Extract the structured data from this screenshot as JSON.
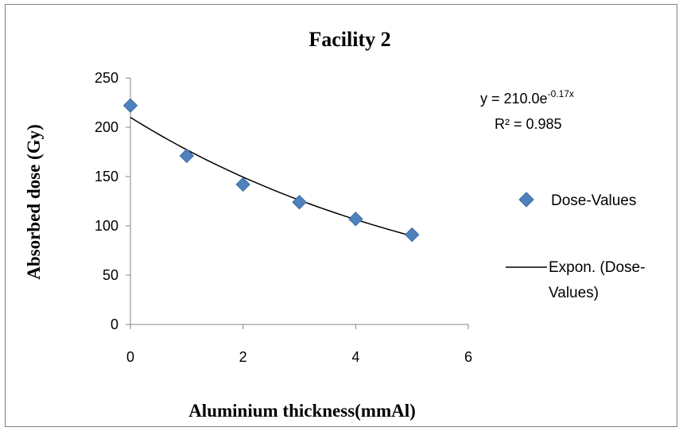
{
  "chart_data": {
    "type": "scatter",
    "title": "Facility 2",
    "xlabel": "Aluminium thickness(mmAl)",
    "ylabel": "Absorbed dose (Gy)",
    "xlim": [
      0,
      6
    ],
    "ylim": [
      0,
      250
    ],
    "xticks": [
      0,
      2,
      4,
      6
    ],
    "yticks": [
      0,
      50,
      100,
      150,
      200,
      250
    ],
    "grid": false,
    "legend_position": "right",
    "series": [
      {
        "name": "Dose-Values",
        "x": [
          0,
          1,
          2,
          3,
          4,
          5
        ],
        "y": [
          222,
          171,
          142,
          124,
          107,
          91
        ],
        "marker": "diamond",
        "color": "#4f81bd"
      }
    ],
    "trendline": {
      "legend_label": "Expon. (Dose-Values)",
      "type": "exponential",
      "a": 210.0,
      "b": -0.17,
      "x_range": [
        0,
        5
      ],
      "color": "#000000",
      "equation_prefix": "y = 210.0e",
      "equation_exponent": "-0.17x",
      "r_squared_label": "R² = 0.985"
    }
  }
}
